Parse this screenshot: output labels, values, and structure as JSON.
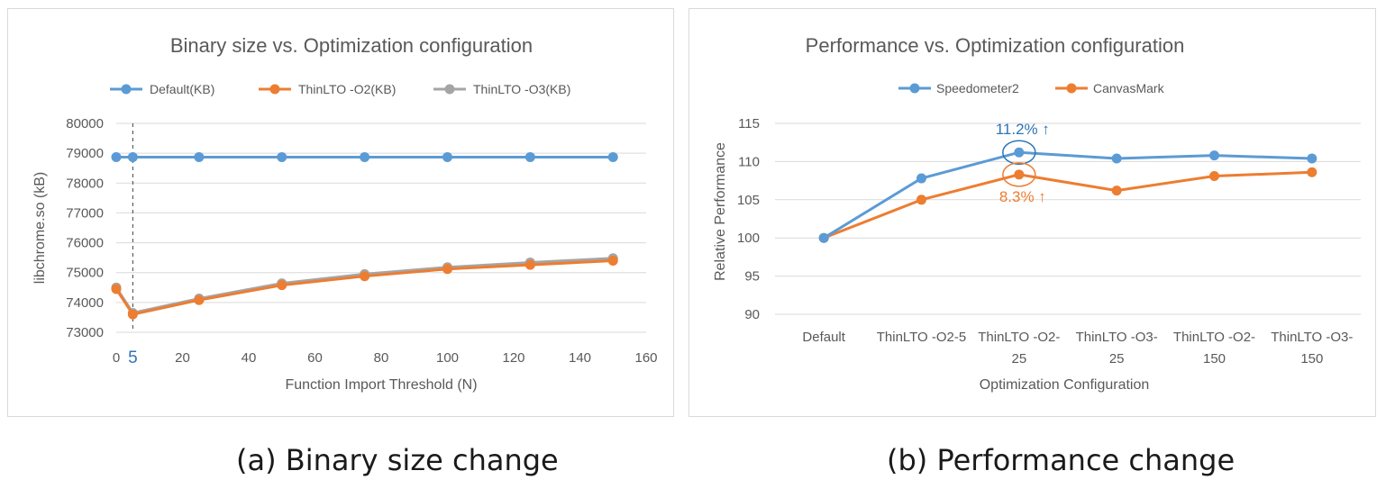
{
  "chart_data": [
    {
      "type": "line",
      "title": "Binary size vs. Optimization configuration",
      "xlabel": "Function Import Threshold (N)",
      "ylabel": "libchrome.so (kB)",
      "xlim": [
        0,
        160
      ],
      "ylim": [
        73000,
        80000
      ],
      "x_ticks": [
        "0",
        "20",
        "40",
        "60",
        "80",
        "100",
        "120",
        "140",
        "160"
      ],
      "y_ticks": [
        "73000",
        "74000",
        "75000",
        "76000",
        "77000",
        "78000",
        "79000",
        "80000"
      ],
      "grid": true,
      "legend_position": "top",
      "marker_annotation": {
        "x": 5,
        "label": "5",
        "style": "dashed-vertical-line"
      },
      "x": [
        0,
        5,
        25,
        50,
        75,
        100,
        125,
        150
      ],
      "series": [
        {
          "name": "Default(KB)",
          "color": "#5b9bd5",
          "values": [
            78870,
            78870,
            78870,
            78870,
            78870,
            78870,
            78870,
            78870
          ]
        },
        {
          "name": "ThinLTO -O2(KB)",
          "color": "#ed7d31",
          "values": [
            74450,
            73600,
            74080,
            74580,
            74880,
            75120,
            75260,
            75400
          ]
        },
        {
          "name": "ThinLTO -O3(KB)",
          "color": "#a5a5a5",
          "values": [
            74500,
            73650,
            74130,
            74640,
            74950,
            75180,
            75340,
            75480
          ]
        }
      ]
    },
    {
      "type": "line",
      "title": "Performance vs. Optimization configuration",
      "xlabel": "Optimization Configuration",
      "ylabel": "Relative Performance",
      "ylim": [
        90,
        115
      ],
      "y_ticks": [
        "90",
        "95",
        "100",
        "105",
        "110",
        "115"
      ],
      "grid": true,
      "legend_position": "top",
      "categories": [
        [
          "Default"
        ],
        [
          "ThinLTO -O2-5"
        ],
        [
          "ThinLTO -O2-",
          "25"
        ],
        [
          "ThinLTO -O3-",
          "25"
        ],
        [
          "ThinLTO -O2-",
          "150"
        ],
        [
          "ThinLTO -O3-",
          "150"
        ]
      ],
      "series": [
        {
          "name": "Speedometer2",
          "color": "#5b9bd5",
          "values": [
            100,
            107.8,
            111.2,
            110.4,
            110.8,
            110.4
          ]
        },
        {
          "name": "CanvasMark",
          "color": "#ed7d31",
          "values": [
            100,
            105,
            108.3,
            106.2,
            108.1,
            108.6
          ]
        }
      ],
      "annotations": [
        {
          "text": "11.2% ↑",
          "series": 0,
          "index": 2,
          "color": "#2e75b6",
          "position": "above"
        },
        {
          "text": "8.3% ↑",
          "series": 1,
          "index": 2,
          "color": "#ed7d31",
          "position": "below"
        }
      ]
    }
  ],
  "captions": {
    "a": "(a) Binary size change",
    "b": "(b) Performance change"
  }
}
